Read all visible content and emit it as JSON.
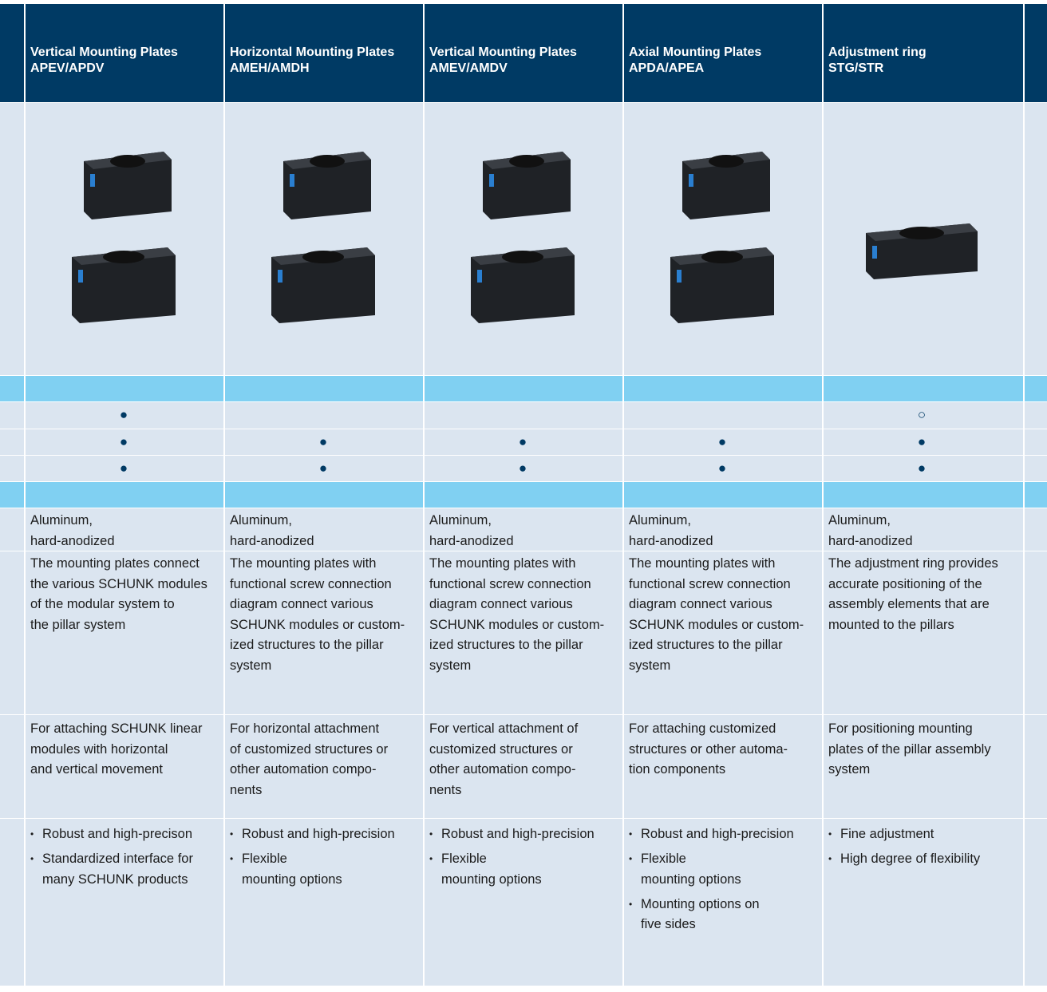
{
  "columns": [
    {
      "title": "Vertical Mounting Plates",
      "code": "APEV/APDV",
      "material": [
        "Aluminum,",
        "hard-anodized"
      ],
      "description": [
        "The mounting plates connect",
        "the various SCHUNK modules",
        "of the modular system to",
        "the pillar system"
      ],
      "use": [
        "For attaching SCHUNK linear",
        "modules with horizontal",
        "and vertical movement"
      ],
      "advantages": [
        [
          "Robust and high-precison"
        ],
        [
          "Standardized interface for",
          "many SCHUNK products"
        ]
      ]
    },
    {
      "title": "Horizontal Mounting Plates",
      "code": "AMEH/AMDH",
      "material": [
        "Aluminum,",
        "hard-anodized"
      ],
      "description": [
        "The mounting plates with",
        "functional screw connection",
        "diagram connect various",
        "SCHUNK modules or custom-",
        "ized structures to the pillar",
        "system"
      ],
      "use": [
        "For horizontal attachment",
        "of customized structures or",
        "other automation compo-",
        "nents"
      ],
      "advantages": [
        [
          "Robust and high-precision"
        ],
        [
          "Flexible",
          "mounting options"
        ]
      ]
    },
    {
      "title": "Vertical Mounting Plates",
      "code": "AMEV/AMDV",
      "material": [
        "Aluminum,",
        "hard-anodized"
      ],
      "description": [
        "The mounting plates with",
        "functional screw connection",
        "diagram connect various",
        "SCHUNK modules or custom-",
        "ized structures to the pillar",
        "system"
      ],
      "use": [
        "For vertical attachment of",
        "customized structures or",
        "other automation compo-",
        "nents"
      ],
      "advantages": [
        [
          "Robust and high-precision"
        ],
        [
          "Flexible",
          "mounting options"
        ]
      ]
    },
    {
      "title": "Axial Mounting Plates",
      "code": "APDA/APEA",
      "material": [
        "Aluminum,",
        "hard-anodized"
      ],
      "description": [
        "The mounting plates with",
        "functional screw connection",
        "diagram connect various",
        "SCHUNK modules or custom-",
        "ized structures to the pillar",
        "system"
      ],
      "use": [
        "For attaching customized",
        "structures or other automa-",
        "tion components"
      ],
      "advantages": [
        [
          "Robust and high-precision"
        ],
        [
          "Flexible",
          "mounting options"
        ],
        [
          "Mounting options on",
          "five sides"
        ]
      ]
    },
    {
      "title": "Adjustment ring",
      "code": "STG/STR",
      "material": [
        "Aluminum,",
        "hard-anodized"
      ],
      "description": [
        "The adjustment ring provides",
        "accurate positioning of the",
        "assembly elements that are",
        "mounted to the pillars"
      ],
      "use": [
        "For positioning mounting",
        "plates of the pillar assembly",
        "system"
      ],
      "advantages": [
        [
          "Fine adjustment"
        ],
        [
          "High degree of flexibility"
        ]
      ]
    }
  ],
  "features": [
    [
      "●",
      null,
      null,
      null,
      "○"
    ],
    [
      "●",
      "●",
      "●",
      "●",
      "●"
    ],
    [
      "●",
      "●",
      "●",
      "●",
      "●"
    ]
  ]
}
